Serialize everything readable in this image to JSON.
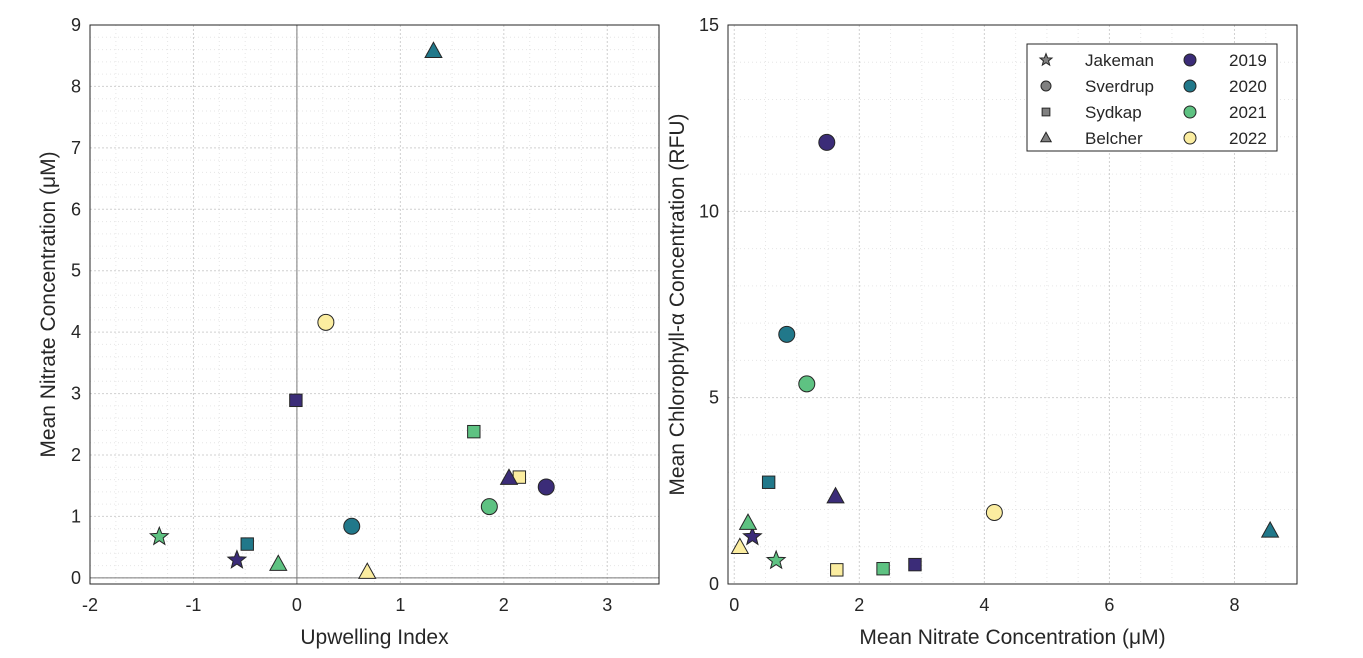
{
  "chart_data": [
    {
      "type": "scatter",
      "xlabel": "Upwelling Index",
      "ylabel": "Mean Nitrate Concentration (μM)",
      "xlim": [
        -2,
        3.5
      ],
      "ylim": [
        -0.1,
        9
      ],
      "xticks": [
        "-2",
        "-1",
        "0",
        "1",
        "2",
        "3"
      ],
      "yticks": [
        "0",
        "1",
        "2",
        "3",
        "4",
        "5",
        "6",
        "7",
        "8",
        "9"
      ],
      "grid": true,
      "reference_lines": {
        "x": 0,
        "y": 0
      },
      "points": [
        {
          "site": "Jakeman",
          "year": "2019",
          "x": -0.58,
          "y": 0.29
        },
        {
          "site": "Jakeman",
          "year": "2021",
          "x": -1.33,
          "y": 0.67
        },
        {
          "site": "Sverdrup",
          "year": "2019",
          "x": 2.41,
          "y": 1.48
        },
        {
          "site": "Sverdrup",
          "year": "2020",
          "x": 0.53,
          "y": 0.84
        },
        {
          "site": "Sverdrup",
          "year": "2021",
          "x": 1.86,
          "y": 1.16
        },
        {
          "site": "Sverdrup",
          "year": "2022",
          "x": 0.28,
          "y": 4.16
        },
        {
          "site": "Sydkap",
          "year": "2019",
          "x": -0.01,
          "y": 2.89
        },
        {
          "site": "Sydkap",
          "year": "2020",
          "x": -0.48,
          "y": 0.55
        },
        {
          "site": "Sydkap",
          "year": "2021",
          "x": 1.71,
          "y": 2.38
        },
        {
          "site": "Sydkap",
          "year": "2022",
          "x": 2.15,
          "y": 1.64
        },
        {
          "site": "Belcher",
          "year": "2019",
          "x": 2.05,
          "y": 1.62
        },
        {
          "site": "Belcher",
          "year": "2020",
          "x": 1.32,
          "y": 8.57
        },
        {
          "site": "Belcher",
          "year": "2021",
          "x": -0.18,
          "y": 0.22
        },
        {
          "site": "Belcher",
          "year": "2022",
          "x": 0.68,
          "y": 0.09
        }
      ]
    },
    {
      "type": "scatter",
      "xlabel": "Mean Nitrate Concentration (μM)",
      "ylabel": "Mean Chlorophyll-α Concentration (RFU)",
      "xlim": [
        -0.1,
        9
      ],
      "ylim": [
        0,
        15
      ],
      "xticks": [
        "0",
        "2",
        "4",
        "6",
        "8"
      ],
      "yticks": [
        "0",
        "5",
        "10",
        "15"
      ],
      "grid": true,
      "legend_position": "top-right",
      "points": [
        {
          "site": "Jakeman",
          "year": "2019",
          "x": 0.29,
          "y": 1.27
        },
        {
          "site": "Jakeman",
          "year": "2021",
          "x": 0.67,
          "y": 0.63
        },
        {
          "site": "Sverdrup",
          "year": "2019",
          "x": 1.48,
          "y": 11.85
        },
        {
          "site": "Sverdrup",
          "year": "2020",
          "x": 0.84,
          "y": 6.7
        },
        {
          "site": "Sverdrup",
          "year": "2021",
          "x": 1.16,
          "y": 5.37
        },
        {
          "site": "Sverdrup",
          "year": "2022",
          "x": 4.16,
          "y": 1.92
        },
        {
          "site": "Sydkap",
          "year": "2019",
          "x": 2.89,
          "y": 0.52
        },
        {
          "site": "Sydkap",
          "year": "2020",
          "x": 0.55,
          "y": 2.73
        },
        {
          "site": "Sydkap",
          "year": "2021",
          "x": 2.38,
          "y": 0.41
        },
        {
          "site": "Sydkap",
          "year": "2022",
          "x": 1.64,
          "y": 0.38
        },
        {
          "site": "Belcher",
          "year": "2019",
          "x": 1.62,
          "y": 2.34
        },
        {
          "site": "Belcher",
          "year": "2020",
          "x": 8.57,
          "y": 1.42
        },
        {
          "site": "Belcher",
          "year": "2021",
          "x": 0.22,
          "y": 1.63
        },
        {
          "site": "Belcher",
          "year": "2022",
          "x": 0.09,
          "y": 0.98
        }
      ]
    }
  ],
  "legend": {
    "sites": [
      {
        "name": "Jakeman",
        "shape": "star"
      },
      {
        "name": "Sverdrup",
        "shape": "circle"
      },
      {
        "name": "Sydkap",
        "shape": "square"
      },
      {
        "name": "Belcher",
        "shape": "triangle"
      }
    ],
    "years": [
      {
        "name": "2019",
        "color": "#3b2c78"
      },
      {
        "name": "2020",
        "color": "#21788a"
      },
      {
        "name": "2021",
        "color": "#5ec282"
      },
      {
        "name": "2022",
        "color": "#fbeda0"
      }
    ],
    "neutral_color": "#808080"
  }
}
